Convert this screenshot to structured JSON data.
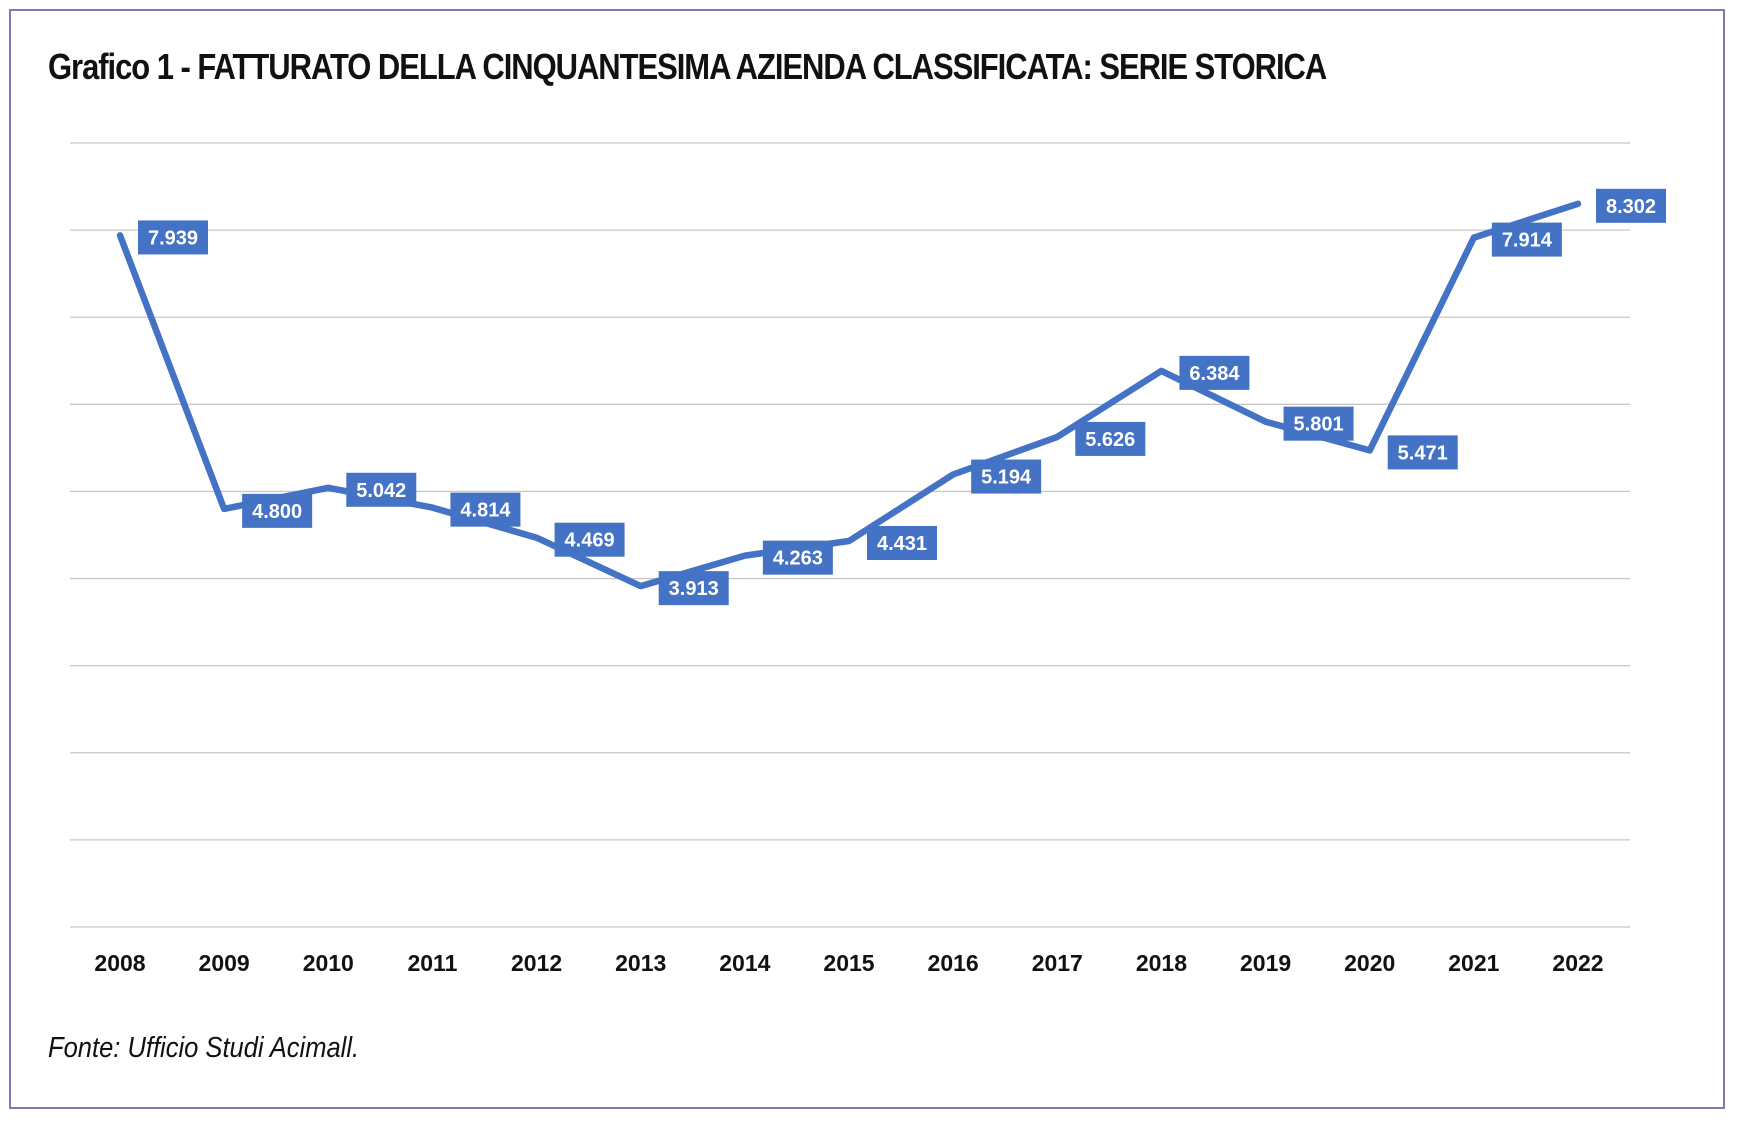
{
  "header": {
    "title": "Grafico 1 - FATTURATO DELLA CINQUANTESIMA AZIENDA CLASSIFICATA: SERIE STORICA"
  },
  "footer": {
    "source": "Fonte: Ufficio Studi Acimall."
  },
  "colors": {
    "series": "#4472c4",
    "label_bg": "#4472c4",
    "gridline": "#c8c8c8",
    "frame": "#7b7bad"
  },
  "chart_data": {
    "type": "line",
    "title": "Grafico 1 - FATTURATO DELLA CINQUANTESIMA AZIENDA CLASSIFICATA: SERIE STORICA",
    "xlabel": "",
    "ylabel": "",
    "categories": [
      "2008",
      "2009",
      "2010",
      "2011",
      "2012",
      "2013",
      "2014",
      "2015",
      "2016",
      "2017",
      "2018",
      "2019",
      "2020",
      "2021",
      "2022"
    ],
    "values": [
      7939,
      4800,
      5042,
      4814,
      4469,
      3913,
      4263,
      4431,
      5194,
      5626,
      6384,
      5801,
      5471,
      7914,
      8302
    ],
    "value_labels": [
      "7.939",
      "4.800",
      "5.042",
      "4.814",
      "4.469",
      "3.913",
      "4.263",
      "4.431",
      "5.194",
      "5.626",
      "6.384",
      "5.801",
      "5.471",
      "7.914",
      "8.302"
    ],
    "ylim": [
      0,
      9000
    ],
    "y_gridline_step": 1000,
    "y_tick_labels_shown": false,
    "grid": true,
    "legend": "none"
  }
}
